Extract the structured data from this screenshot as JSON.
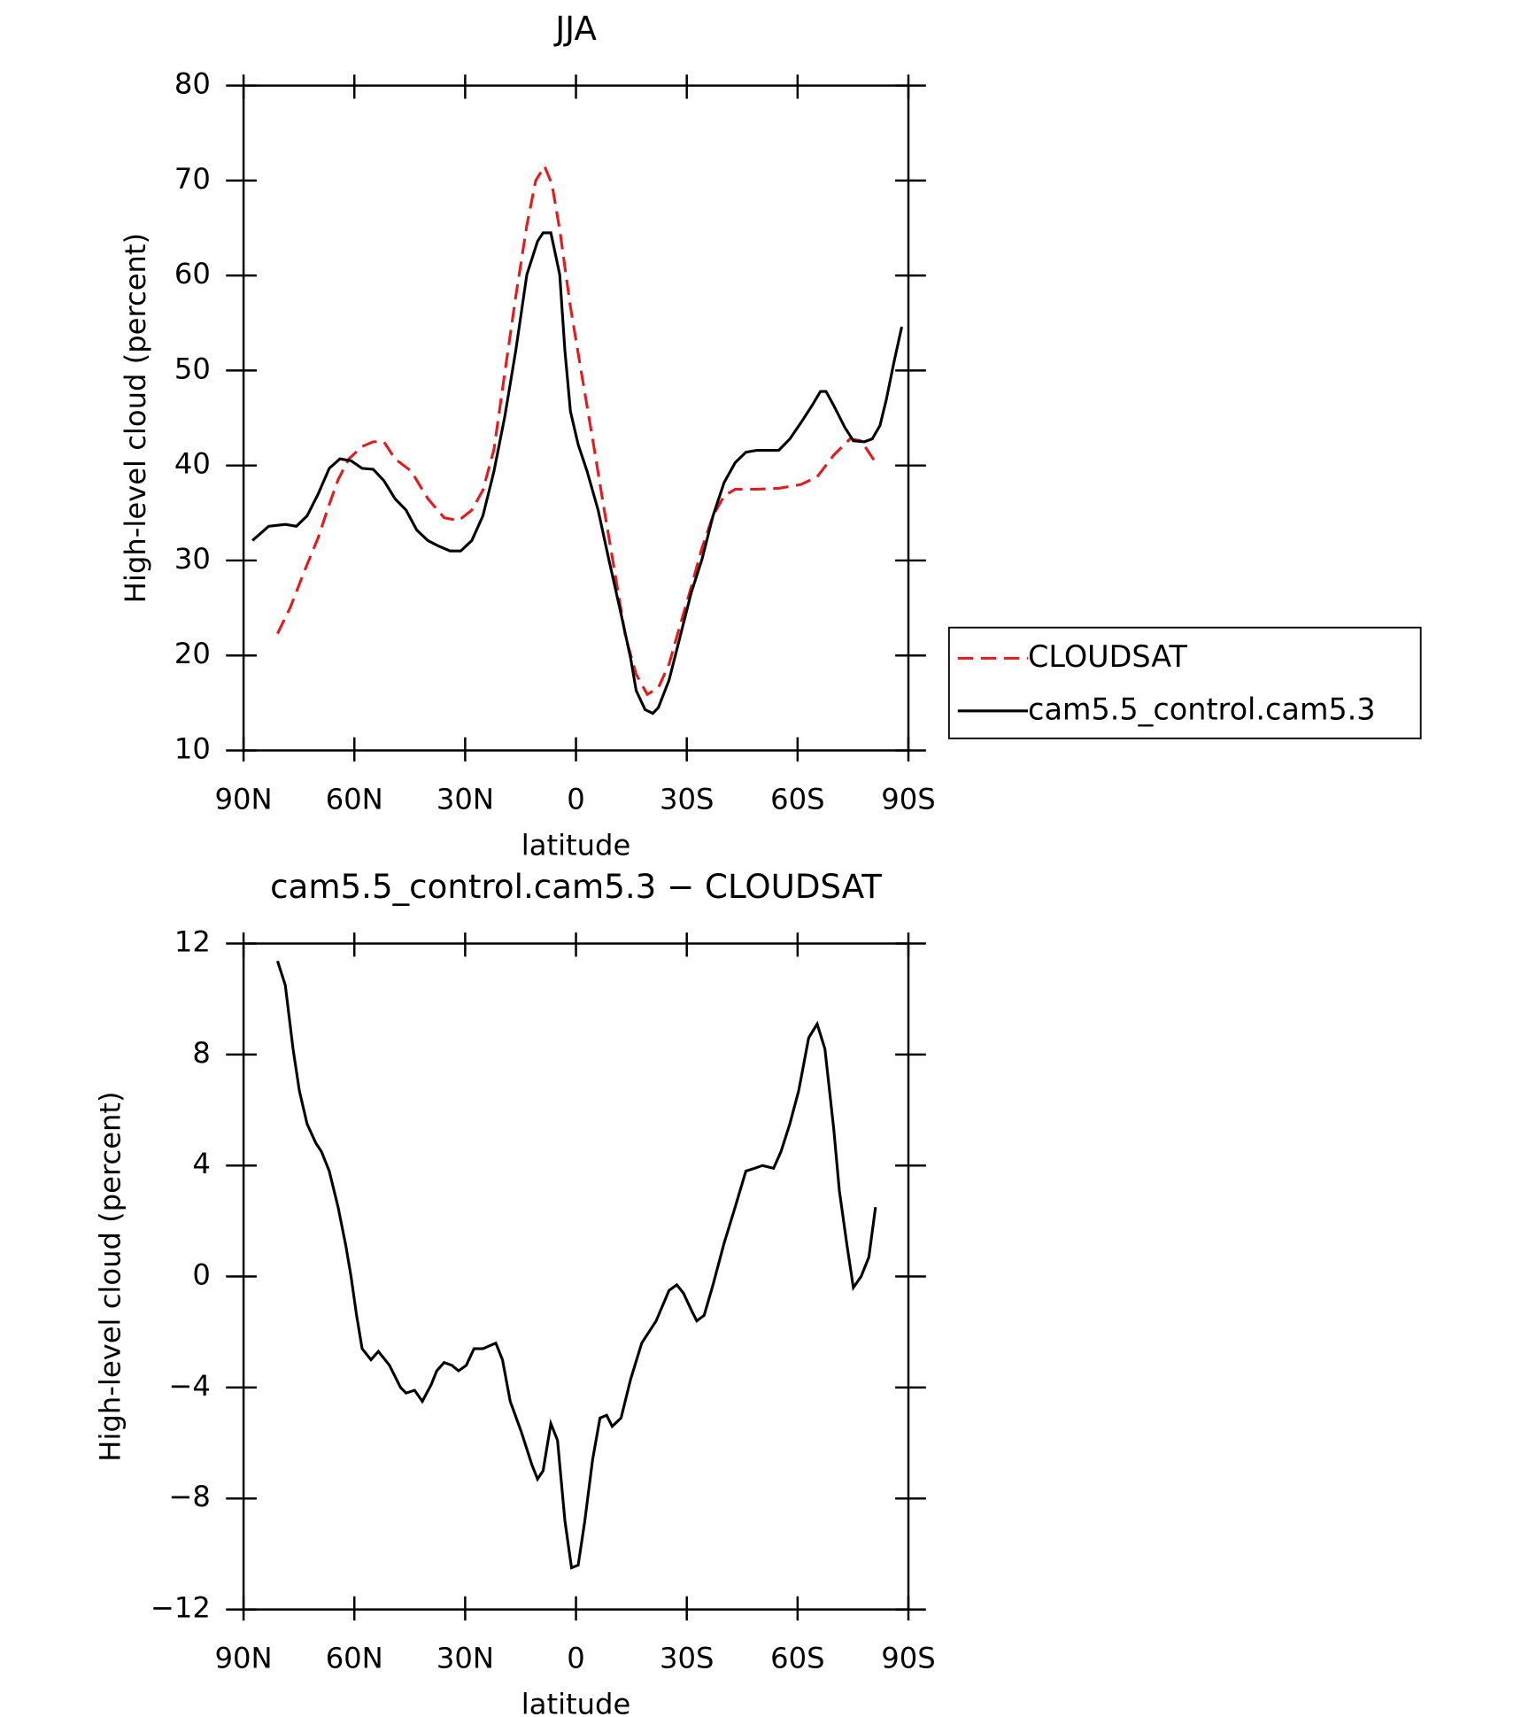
{
  "chart_data": [
    {
      "type": "line",
      "title": "JJA",
      "xlabel": "latitude",
      "ylabel": "High-level cloud (percent)",
      "xlim": [
        90,
        -90
      ],
      "xticks": [
        {
          "value": 90,
          "label": "90N"
        },
        {
          "value": 60,
          "label": "60N"
        },
        {
          "value": 30,
          "label": "30N"
        },
        0,
        {
          "value": -30,
          "label": "30S"
        },
        {
          "value": -60,
          "label": "60S"
        },
        {
          "value": -90,
          "label": "90S"
        }
      ],
      "ylim": [
        10,
        80
      ],
      "yticks": [
        10,
        20,
        30,
        40,
        50,
        60,
        70,
        80
      ],
      "legend": "right",
      "series": [
        {
          "name": "CLOUDSAT",
          "color": "#e41a1c",
          "dashed": true,
          "x": [
            80.8,
            77.3,
            73.4,
            69.8,
            66.8,
            64.4,
            61.5,
            57.9,
            54.9,
            52.0,
            49.0,
            44.6,
            40.1,
            35.7,
            31.8,
            28.2,
            25.2,
            22.2,
            19.3,
            16.3,
            13.3,
            10.9,
            8.5,
            6.5,
            4.4,
            1.5,
            -1.5,
            -4.5,
            -7.4,
            -10.4,
            -13.4,
            -16.3,
            -19.3,
            -22.3,
            -25.2,
            -28.2,
            -31.2,
            -34.1,
            -37.1,
            -40.1,
            -43.1,
            -49.0,
            -54.9,
            -60.9,
            -65.3,
            -69.8,
            -74.2,
            -77.2,
            -80.8
          ],
          "values": [
            22.3,
            25.1,
            29.0,
            32.4,
            35.9,
            38.5,
            40.7,
            42.0,
            42.5,
            42.5,
            40.7,
            39.4,
            36.5,
            34.5,
            34.2,
            35.3,
            37.4,
            41.7,
            49.7,
            57.8,
            65.3,
            70.0,
            71.5,
            69.6,
            64.8,
            56.7,
            49.7,
            42.8,
            35.9,
            29.0,
            22.0,
            18.0,
            15.9,
            16.6,
            19.1,
            23.2,
            27.2,
            31.3,
            34.7,
            36.8,
            37.5,
            37.5,
            37.6,
            38.0,
            38.8,
            41.1,
            42.8,
            42.6,
            40.5
          ]
        },
        {
          "name": "cam5.5_control.cam5.3",
          "color": "#000000",
          "dashed": false,
          "x": [
            87.6,
            83.2,
            78.7,
            75.7,
            72.8,
            69.8,
            66.8,
            63.9,
            60.9,
            57.9,
            54.9,
            52.0,
            49.0,
            46.0,
            43.1,
            40.1,
            37.1,
            34.1,
            31.2,
            28.2,
            25.2,
            22.2,
            19.3,
            16.3,
            13.3,
            10.4,
            8.9,
            6.8,
            4.4,
            3.0,
            1.5,
            -0.6,
            -3.0,
            -6.0,
            -8.9,
            -11.9,
            -14.8,
            -16.3,
            -18.7,
            -20.8,
            -22.3,
            -25.2,
            -28.2,
            -31.2,
            -34.1,
            -37.1,
            -40.1,
            -43.1,
            -46.0,
            -49.0,
            -52.0,
            -54.9,
            -57.9,
            -60.9,
            -63.9,
            -66.2,
            -67.7,
            -69.8,
            -72.8,
            -75.1,
            -78.1,
            -80.2,
            -82.3,
            -84.0,
            -86.1,
            -88.2
          ],
          "values": [
            32.1,
            33.6,
            33.8,
            33.6,
            34.7,
            37.0,
            39.7,
            40.7,
            40.5,
            39.7,
            39.6,
            38.4,
            36.5,
            35.3,
            33.2,
            32.1,
            31.5,
            31.0,
            31.0,
            32.1,
            34.7,
            39.4,
            45.1,
            52.1,
            60.1,
            63.6,
            64.5,
            64.5,
            60.1,
            52.1,
            45.7,
            42.2,
            39.4,
            35.3,
            30.1,
            24.9,
            19.7,
            16.3,
            14.3,
            13.9,
            14.5,
            17.4,
            22.0,
            26.6,
            30.1,
            34.7,
            38.2,
            40.3,
            41.4,
            41.6,
            41.6,
            41.6,
            42.8,
            44.5,
            46.3,
            47.8,
            47.8,
            46.3,
            44.0,
            42.6,
            42.5,
            42.8,
            44.2,
            46.9,
            50.9,
            54.6
          ]
        }
      ]
    },
    {
      "type": "line",
      "title": "cam5.5_control.cam5.3 − CLOUDSAT",
      "xlabel": "latitude",
      "ylabel": "High-level cloud (percent)",
      "xlim": [
        90,
        -90
      ],
      "xticks": [
        {
          "value": 90,
          "label": "90N"
        },
        {
          "value": 60,
          "label": "60N"
        },
        {
          "value": 30,
          "label": "30N"
        },
        0,
        {
          "value": -30,
          "label": "30S"
        },
        {
          "value": -60,
          "label": "60S"
        },
        {
          "value": -90,
          "label": "90S"
        }
      ],
      "ylim": [
        -12,
        12
      ],
      "yticks": [
        {
          "value": -12,
          "label": "−12"
        },
        {
          "value": -8,
          "label": "−8"
        },
        {
          "value": -4,
          "label": "−4"
        },
        0,
        4,
        8,
        12
      ],
      "color": "#000000",
      "x": [
        80.8,
        78.7,
        76.6,
        74.9,
        72.8,
        70.4,
        68.9,
        66.8,
        64.4,
        62.3,
        60.9,
        59.4,
        57.9,
        55.5,
        53.5,
        50.5,
        47.5,
        46.0,
        43.7,
        41.6,
        39.2,
        37.7,
        35.7,
        33.6,
        31.8,
        29.7,
        27.6,
        25.2,
        21.7,
        19.9,
        17.8,
        14.8,
        11.9,
        10.4,
        8.9,
        6.8,
        5.0,
        3.0,
        1.2,
        -0.6,
        -2.4,
        -4.5,
        -6.5,
        -8.3,
        -9.8,
        -12.2,
        -14.8,
        -17.8,
        -21.7,
        -25.2,
        -27.3,
        -29.1,
        -31.2,
        -32.7,
        -34.7,
        -37.1,
        -40.1,
        -43.1,
        -46.0,
        -48.4,
        -50.5,
        -53.5,
        -55.5,
        -57.9,
        -60.3,
        -63.0,
        -65.3,
        -67.4,
        -69.8,
        -71.3,
        -73.4,
        -75.1,
        -77.2,
        -79.3,
        -81.1
      ],
      "values": [
        11.37,
        10.5,
        8.2,
        6.7,
        5.5,
        4.8,
        4.5,
        3.8,
        2.5,
        1.1,
        0.0,
        -1.4,
        -2.6,
        -3.0,
        -2.7,
        -3.2,
        -4.0,
        -4.2,
        -4.1,
        -4.5,
        -3.9,
        -3.4,
        -3.1,
        -3.2,
        -3.4,
        -3.2,
        -2.6,
        -2.6,
        -2.4,
        -3.0,
        -4.5,
        -5.6,
        -6.8,
        -7.3,
        -7.0,
        -5.3,
        -5.9,
        -8.8,
        -10.5,
        -10.4,
        -8.8,
        -6.6,
        -5.1,
        -5.0,
        -5.4,
        -5.1,
        -3.7,
        -2.4,
        -1.6,
        -0.5,
        -0.3,
        -0.6,
        -1.2,
        -1.6,
        -1.4,
        -0.3,
        1.2,
        2.5,
        3.8,
        3.9,
        4.0,
        3.9,
        4.5,
        5.5,
        6.7,
        8.6,
        9.1,
        8.2,
        5.3,
        3.1,
        1.1,
        -0.4,
        0.0,
        0.7,
        2.5
      ]
    }
  ]
}
